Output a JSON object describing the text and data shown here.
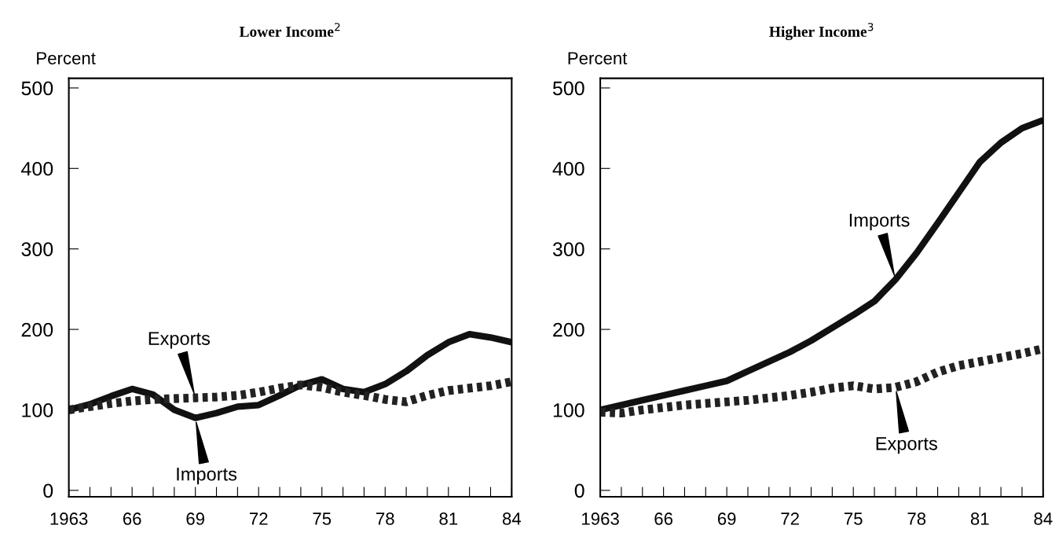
{
  "chart_data": [
    {
      "type": "line",
      "title": "Lower Income$^{2}$",
      "ylabel": "Percent",
      "x": [
        1963,
        1964,
        1965,
        1966,
        1967,
        1968,
        1969,
        1970,
        1971,
        1972,
        1973,
        1974,
        1975,
        1976,
        1977,
        1978,
        1979,
        1980,
        1981,
        1982,
        1983,
        1984
      ],
      "series": [
        {
          "name": "Imports",
          "color": "#111111",
          "line_style": "solid",
          "values": [
            100,
            107,
            117,
            126,
            119,
            100,
            90,
            96,
            104,
            106,
            118,
            131,
            138,
            126,
            122,
            132,
            148,
            168,
            184,
            194,
            190,
            184
          ]
        },
        {
          "name": "Exports",
          "color": "#222222",
          "line_style": "dotted",
          "values": [
            100,
            104,
            108,
            111,
            113,
            114,
            115,
            116,
            118,
            122,
            127,
            131,
            128,
            122,
            118,
            113,
            110,
            118,
            124,
            127,
            130,
            135
          ]
        }
      ],
      "xlim": [
        1963,
        1984
      ],
      "ylim": [
        -8,
        512
      ],
      "xticks": [
        1963,
        {
          "value": 1964,
          "label": null
        },
        {
          "value": 1965,
          "label": null
        },
        {
          "value": 1966,
          "label": "66"
        },
        {
          "value": 1967,
          "label": null
        },
        {
          "value": 1968,
          "label": null
        },
        {
          "value": 1969,
          "label": "69"
        },
        {
          "value": 1970,
          "label": null
        },
        {
          "value": 1971,
          "label": null
        },
        {
          "value": 1972,
          "label": "72"
        },
        {
          "value": 1973,
          "label": null
        },
        {
          "value": 1974,
          "label": null
        },
        {
          "value": 1975,
          "label": "75"
        },
        {
          "value": 1976,
          "label": null
        },
        {
          "value": 1977,
          "label": null
        },
        {
          "value": 1978,
          "label": "78"
        },
        {
          "value": 1979,
          "label": null
        },
        {
          "value": 1980,
          "label": null
        },
        {
          "value": 1981,
          "label": "81"
        },
        {
          "value": 1982,
          "label": null
        },
        {
          "value": 1983,
          "label": null
        },
        {
          "value": 1984,
          "label": "84"
        }
      ],
      "yticks": [
        0,
        100,
        200,
        300,
        400,
        500
      ],
      "grid": false,
      "legend": false,
      "marker": "none"
    },
    {
      "type": "line",
      "title": "Higher Income$^{3}$",
      "ylabel": "Percent",
      "x": [
        1963,
        1964,
        1965,
        1966,
        1967,
        1968,
        1969,
        1970,
        1971,
        1972,
        1973,
        1974,
        1975,
        1976,
        1977,
        1978,
        1979,
        1980,
        1981,
        1982,
        1983,
        1984
      ],
      "series": [
        {
          "name": "Imports",
          "color": "#111111",
          "line_style": "solid",
          "values": [
            100,
            106,
            112,
            118,
            124,
            130,
            136,
            148,
            160,
            172,
            186,
            202,
            218,
            235,
            262,
            295,
            332,
            370,
            408,
            432,
            450,
            460
          ]
        },
        {
          "name": "Exports",
          "color": "#222222",
          "line_style": "dotted",
          "values": [
            97,
            96,
            100,
            103,
            106,
            108,
            110,
            112,
            115,
            118,
            122,
            127,
            130,
            126,
            128,
            135,
            147,
            155,
            160,
            165,
            170,
            176
          ]
        }
      ],
      "xlim": [
        1963,
        1984
      ],
      "ylim": [
        -8,
        512
      ],
      "xticks": [
        1963,
        {
          "value": 1964,
          "label": null
        },
        {
          "value": 1965,
          "label": null
        },
        {
          "value": 1966,
          "label": "66"
        },
        {
          "value": 1967,
          "label": null
        },
        {
          "value": 1968,
          "label": null
        },
        {
          "value": 1969,
          "label": "69"
        },
        {
          "value": 1970,
          "label": null
        },
        {
          "value": 1971,
          "label": null
        },
        {
          "value": 1972,
          "label": "72"
        },
        {
          "value": 1973,
          "label": null
        },
        {
          "value": 1974,
          "label": null
        },
        {
          "value": 1975,
          "label": "75"
        },
        {
          "value": 1976,
          "label": null
        },
        {
          "value": 1977,
          "label": null
        },
        {
          "value": 1978,
          "label": "78"
        },
        {
          "value": 1979,
          "label": null
        },
        {
          "value": 1980,
          "label": null
        },
        {
          "value": 1981,
          "label": "81"
        },
        {
          "value": 1982,
          "label": null
        },
        {
          "value": 1983,
          "label": null
        },
        {
          "value": 1984,
          "label": "84"
        }
      ],
      "yticks": [
        0,
        100,
        200,
        300,
        400,
        500
      ],
      "grid": false,
      "legend": false,
      "marker": "none"
    }
  ]
}
